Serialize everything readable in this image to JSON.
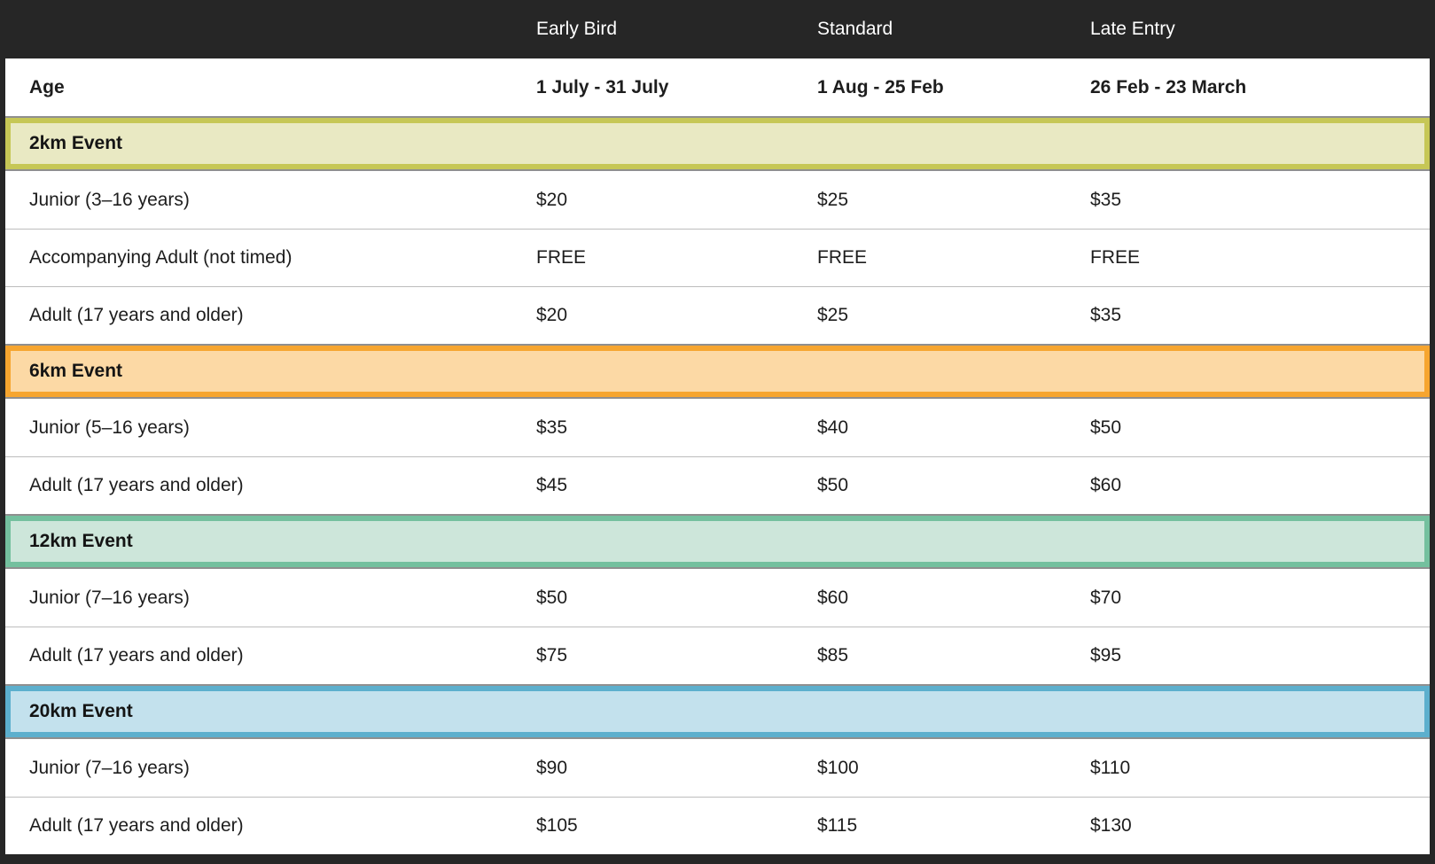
{
  "page": {
    "background": "#262626",
    "divider_color": "#bdbdbd",
    "band_edge_color": "#8f8f8f"
  },
  "table": {
    "columns": [
      {
        "header": "",
        "subheader": "Age"
      },
      {
        "header": "Early Bird",
        "subheader": "1 July - 31 July"
      },
      {
        "header": "Standard",
        "subheader": "1 Aug - 25 Feb"
      },
      {
        "header": "Late Entry",
        "subheader": "26 Feb - 23 March"
      }
    ],
    "sections": [
      {
        "label": "2km Event",
        "fill": "#e9e9c3",
        "border": "#c6c756",
        "rows": [
          {
            "label": "Junior (3–16 years)",
            "prices": [
              "$20",
              "$25",
              "$35"
            ]
          },
          {
            "label": "Accompanying Adult (not timed)",
            "prices": [
              "FREE",
              "FREE",
              "FREE"
            ]
          },
          {
            "label": "Adult (17 years and older)",
            "prices": [
              "$20",
              "$25",
              "$35"
            ]
          }
        ]
      },
      {
        "label": "6km Event",
        "fill": "#fcd9a5",
        "border": "#f6a52f",
        "rows": [
          {
            "label": "Junior (5–16 years)",
            "prices": [
              "$35",
              "$40",
              "$50"
            ]
          },
          {
            "label": "Adult (17 years and older)",
            "prices": [
              "$45",
              "$50",
              "$60"
            ]
          }
        ]
      },
      {
        "label": "12km Event",
        "fill": "#cde6da",
        "border": "#74c09e",
        "rows": [
          {
            "label": "Junior (7–16 years)",
            "prices": [
              "$50",
              "$60",
              "$70"
            ]
          },
          {
            "label": "Adult (17 years and older)",
            "prices": [
              "$75",
              "$85",
              "$95"
            ]
          }
        ]
      },
      {
        "label": "20km Event",
        "fill": "#c3e1ed",
        "border": "#5cafcd",
        "rows": [
          {
            "label": "Junior (7–16 years)",
            "prices": [
              "$90",
              "$100",
              "$110"
            ]
          },
          {
            "label": "Adult (17 years and older)",
            "prices": [
              "$105",
              "$115",
              "$130"
            ]
          }
        ]
      }
    ]
  }
}
